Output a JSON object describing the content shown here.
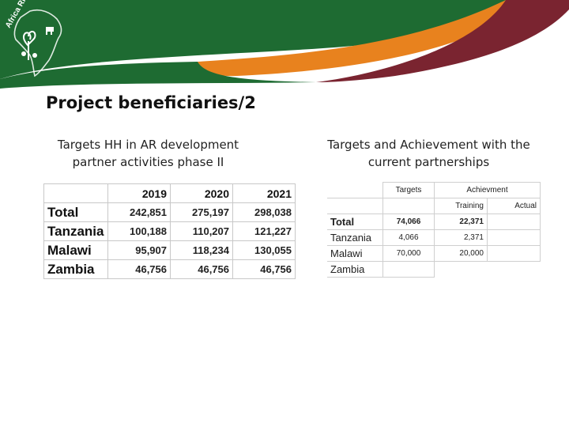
{
  "logo": {
    "text": "Africa RISING"
  },
  "colors": {
    "green": "#1e6b32",
    "orange": "#e8821e",
    "maroon": "#7a2430"
  },
  "slide": {
    "title": "Project beneficiaries/2"
  },
  "left": {
    "caption": "Targets HH in AR development partner activities phase II",
    "headers": [
      "2019",
      "2020",
      "2021"
    ],
    "rows": [
      {
        "name": "Total",
        "values": [
          "242,851",
          "275,197",
          "298,038"
        ]
      },
      {
        "name": "Tanzania",
        "values": [
          "100,188",
          "110,207",
          "121,227"
        ]
      },
      {
        "name": "Malawi",
        "values": [
          "95,907",
          "118,234",
          "130,055"
        ]
      },
      {
        "name": "Zambia",
        "values": [
          "46,756",
          "46,756",
          "46,756"
        ]
      }
    ]
  },
  "right": {
    "caption": "Targets and Achievement with the current partnerships",
    "header_targets": "Targets",
    "header_achievement": "Achievment",
    "header_training": "Training",
    "header_actual": "Actual",
    "rows": [
      {
        "name": "Total",
        "target": "74,066",
        "training": "22,371",
        "actual": ""
      },
      {
        "name": "Tanzania",
        "target": "4,066",
        "training": "2,371",
        "actual": ""
      },
      {
        "name": "Malawi",
        "target": "70,000",
        "training": "20,000",
        "actual": ""
      },
      {
        "name": "Zambia",
        "target": "",
        "training": "",
        "actual": ""
      }
    ]
  }
}
